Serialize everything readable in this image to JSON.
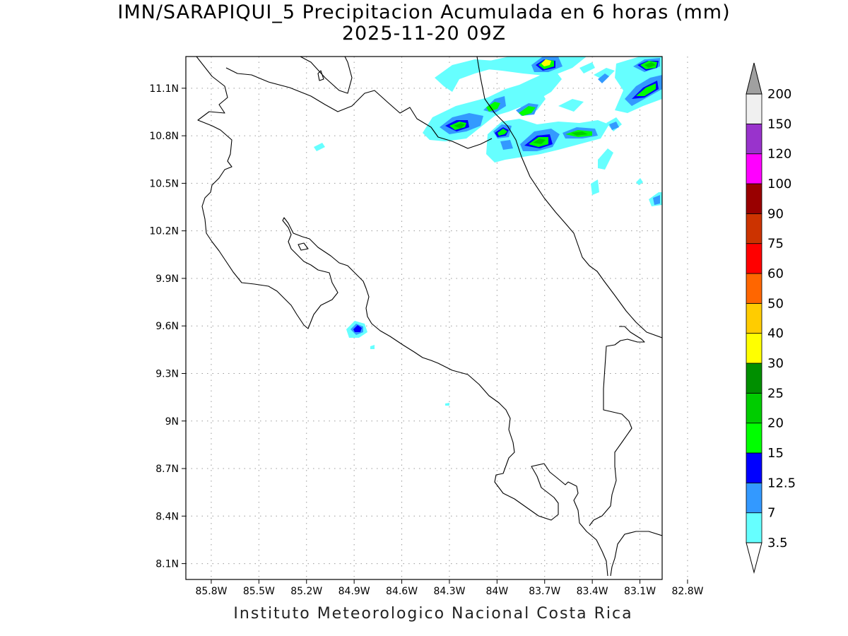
{
  "title": {
    "line1": "IMN/SARAPIQUI_5 Precipitacion Acumulada en 6 horas (mm)",
    "line2": "2025-11-20 09Z"
  },
  "map": {
    "lat_labels": [
      "11.1N",
      "10.8N",
      "10.5N",
      "10.2N",
      "9.9N",
      "9.6N",
      "9.3N",
      "9N",
      "8.7N",
      "8.4N",
      "8.1N"
    ],
    "lat_values": [
      11.1,
      10.8,
      10.5,
      10.2,
      9.9,
      9.6,
      9.3,
      9.0,
      8.7,
      8.4,
      8.1
    ],
    "lon_labels": [
      "85.8W",
      "85.5W",
      "85.2W",
      "84.9W",
      "84.6W",
      "84.3W",
      "84W",
      "83.7W",
      "83.4W",
      "83.1W",
      "82.8W"
    ],
    "lon_values": [
      -85.8,
      -85.5,
      -85.2,
      -84.9,
      -84.6,
      -84.3,
      -84.0,
      -83.7,
      -83.4,
      -83.1,
      -82.8
    ],
    "lat_range": [
      8.0,
      11.3
    ],
    "lon_range": [
      -85.96,
      -82.96
    ],
    "grid": "dotted"
  },
  "colorbar": {
    "labels": [
      "3.5",
      "7",
      "12.5",
      "15",
      "20",
      "25",
      "30",
      "40",
      "50",
      "60",
      "75",
      "90",
      "100",
      "120",
      "150",
      "200"
    ],
    "colors": [
      "#66ffff",
      "#3399ff",
      "#0000ff",
      "#00ff00",
      "#00cc00",
      "#008f00",
      "#ffff00",
      "#ffcc00",
      "#ff6600",
      "#ff0000",
      "#cc3300",
      "#990000",
      "#ff00ff",
      "#9933cc",
      "#f0f0f0"
    ],
    "top_arrow_color": "#a0a0a0",
    "bottom_arrow_color": "#ffffff"
  },
  "credit": "Instituto Meteorologico Nacional Costa Rica"
}
